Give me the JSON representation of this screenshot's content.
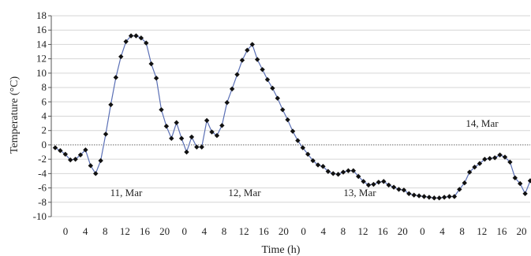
{
  "chart_data": {
    "type": "line",
    "xlabel": "Time (h)",
    "ylabel": "Temperature (°C)",
    "ylim": [
      -10,
      18
    ],
    "yticks": [
      -10,
      -8,
      -6,
      -4,
      -2,
      0,
      2,
      4,
      6,
      8,
      10,
      12,
      14,
      16,
      18
    ],
    "xlim": [
      0,
      94
    ],
    "x_tick_labels": [
      "0",
      "4",
      "8",
      "12",
      "16",
      "20",
      "0",
      "4",
      "8",
      "12",
      "16",
      "20",
      "0",
      "4",
      "8",
      "12",
      "16",
      "20",
      "0",
      "4",
      "8",
      "12",
      "16",
      "20"
    ],
    "grid": "horizontal",
    "annotations": [
      "11, Mar",
      "12, Mar",
      "13, Mar",
      "14, Mar"
    ],
    "line_color": "#5a6fb5",
    "marker_color": "#111111",
    "zero_line_color": "#999999",
    "series": [
      {
        "x": [
          0,
          1,
          2,
          3,
          4,
          5,
          6,
          7,
          8,
          9,
          10,
          11,
          12,
          13,
          14,
          15,
          16,
          17,
          18,
          19,
          20,
          21,
          22,
          23,
          24,
          25,
          26,
          27,
          28,
          29,
          30,
          31,
          32,
          33,
          34,
          35,
          36,
          37,
          38,
          39,
          40,
          41,
          42,
          43,
          44,
          45,
          46,
          47,
          48,
          49,
          50,
          51,
          52,
          53,
          54,
          55,
          56,
          57,
          58,
          59,
          60,
          61,
          62,
          63,
          64,
          65,
          66,
          67,
          68,
          69,
          70,
          71,
          72,
          73,
          74,
          75,
          76,
          77,
          78,
          79,
          80,
          81,
          82,
          83,
          84,
          85,
          86,
          87,
          88,
          89,
          90,
          91,
          92,
          93,
          94
        ],
        "y": [
          -0.4,
          -0.8,
          -1.3,
          -2.1,
          -2.0,
          -1.4,
          -0.7,
          -2.9,
          -4.0,
          -2.2,
          1.5,
          5.6,
          9.4,
          12.3,
          14.4,
          15.2,
          15.2,
          14.9,
          14.2,
          11.3,
          9.3,
          4.9,
          2.6,
          0.9,
          3.1,
          0.9,
          -1.0,
          1.1,
          -0.3,
          -0.3,
          3.4,
          1.8,
          1.3,
          2.7,
          5.9,
          7.8,
          9.8,
          11.8,
          13.2,
          14.0,
          11.9,
          10.5,
          9.1,
          7.9,
          6.5,
          4.9,
          3.5,
          1.9,
          0.6,
          -0.4,
          -1.3,
          -2.2,
          -2.8,
          -3.0,
          -3.7,
          -4.0,
          -4.1,
          -3.8,
          -3.6,
          -3.6,
          -4.4,
          -5.1,
          -5.6,
          -5.5,
          -5.2,
          -5.1,
          -5.6,
          -5.9,
          -6.2,
          -6.3,
          -6.8,
          -7.0,
          -7.1,
          -7.2,
          -7.3,
          -7.4,
          -7.4,
          -7.3,
          -7.2,
          -7.2,
          -6.2,
          -5.3,
          -3.8,
          -3.1,
          -2.6,
          -2.0,
          -1.9,
          -1.8,
          -1.4,
          -1.7,
          -2.4,
          -4.6,
          -5.4,
          -6.8,
          -5.0
        ]
      }
    ]
  }
}
